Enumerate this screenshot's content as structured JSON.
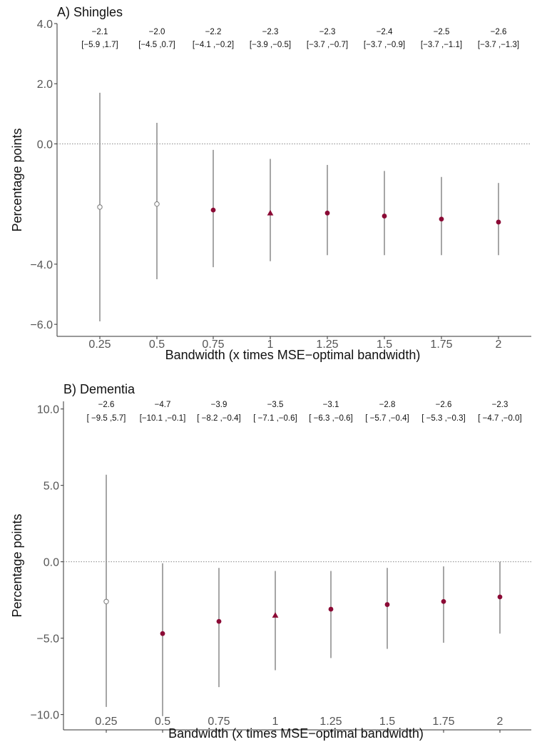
{
  "chart_data": [
    {
      "type": "scatter",
      "title": "A) Shingles",
      "xlabel": "Bandwidth (x times MSE−optimal bandwidth)",
      "ylabel": "Percentage points",
      "ylim": [
        -6.4,
        4.0
      ],
      "y_ticks": [
        "4.0",
        "2.0",
        "0.0",
        "−4.0",
        "−6.0"
      ],
      "y_tick_values": [
        4.0,
        2.0,
        0.0,
        -4.0,
        -6.0
      ],
      "categories": [
        "0.25",
        "0.5",
        "0.75",
        "1",
        "1.25",
        "1.5",
        "1.75",
        "2"
      ],
      "reference_line": 0,
      "grid": false,
      "points": [
        {
          "x": "0.25",
          "estimate": -2.1,
          "lower": -5.9,
          "upper": 1.7,
          "marker": "open-circle",
          "est_label": "−2.1",
          "ci_label": "[−5.9 ,1.7]"
        },
        {
          "x": "0.5",
          "estimate": -2.0,
          "lower": -4.5,
          "upper": 0.7,
          "marker": "open-circle",
          "est_label": "−2.0",
          "ci_label": "[−4.5 ,0.7]"
        },
        {
          "x": "0.75",
          "estimate": -2.2,
          "lower": -4.1,
          "upper": -0.2,
          "marker": "filled-circle",
          "est_label": "−2.2",
          "ci_label": "[−4.1 ,−0.2]"
        },
        {
          "x": "1",
          "estimate": -2.3,
          "lower": -3.9,
          "upper": -0.5,
          "marker": "filled-triangle",
          "est_label": "−2.3",
          "ci_label": "[−3.9 ,−0.5]"
        },
        {
          "x": "1.25",
          "estimate": -2.3,
          "lower": -3.7,
          "upper": -0.7,
          "marker": "filled-circle",
          "est_label": "−2.3",
          "ci_label": "[−3.7 ,−0.7]"
        },
        {
          "x": "1.5",
          "estimate": -2.4,
          "lower": -3.7,
          "upper": -0.9,
          "marker": "filled-circle",
          "est_label": "−2.4",
          "ci_label": "[−3.7 ,−0.9]"
        },
        {
          "x": "1.75",
          "estimate": -2.5,
          "lower": -3.7,
          "upper": -1.1,
          "marker": "filled-circle",
          "est_label": "−2.5",
          "ci_label": "[−3.7 ,−1.1]"
        },
        {
          "x": "2",
          "estimate": -2.6,
          "lower": -3.7,
          "upper": -1.3,
          "marker": "filled-circle",
          "est_label": "−2.6",
          "ci_label": "[−3.7 ,−1.3]"
        }
      ]
    },
    {
      "type": "scatter",
      "title": "B) Dementia",
      "xlabel": "Bandwidth (x times MSE−optimal bandwidth)",
      "ylabel": "Percentage points",
      "ylim": [
        -11.0,
        10.5
      ],
      "y_ticks": [
        "10.0",
        "5.0",
        "0.0",
        "−5.0",
        "−10.0"
      ],
      "y_tick_values": [
        10.0,
        5.0,
        0.0,
        -5.0,
        -10.0
      ],
      "categories": [
        "0.25",
        "0.5",
        "0.75",
        "1",
        "1.25",
        "1.5",
        "1.75",
        "2"
      ],
      "reference_line": 0,
      "grid": false,
      "points": [
        {
          "x": "0.25",
          "estimate": -2.6,
          "lower": -9.5,
          "upper": 5.7,
          "marker": "open-circle",
          "est_label": "−2.6",
          "ci_label": "[ −9.5 ,5.7]"
        },
        {
          "x": "0.5",
          "estimate": -4.7,
          "lower": -10.1,
          "upper": -0.1,
          "marker": "filled-circle",
          "est_label": "−4.7",
          "ci_label": "[−10.1 ,−0.1]"
        },
        {
          "x": "0.75",
          "estimate": -3.9,
          "lower": -8.2,
          "upper": -0.4,
          "marker": "filled-circle",
          "est_label": "−3.9",
          "ci_label": "[ −8.2 ,−0.4]"
        },
        {
          "x": "1",
          "estimate": -3.5,
          "lower": -7.1,
          "upper": -0.6,
          "marker": "filled-triangle",
          "est_label": "−3.5",
          "ci_label": "[ −7.1 ,−0.6]"
        },
        {
          "x": "1.25",
          "estimate": -3.1,
          "lower": -6.3,
          "upper": -0.6,
          "marker": "filled-circle",
          "est_label": "−3.1",
          "ci_label": "[ −6.3 ,−0.6]"
        },
        {
          "x": "1.5",
          "estimate": -2.8,
          "lower": -5.7,
          "upper": -0.4,
          "marker": "filled-circle",
          "est_label": "−2.8",
          "ci_label": "[ −5.7 ,−0.4]"
        },
        {
          "x": "1.75",
          "estimate": -2.6,
          "lower": -5.3,
          "upper": -0.3,
          "marker": "filled-circle",
          "est_label": "−2.6",
          "ci_label": "[ −5.3 ,−0.3]"
        },
        {
          "x": "2",
          "estimate": -2.3,
          "lower": -4.7,
          "upper": -0.0,
          "marker": "filled-circle",
          "est_label": "−2.3",
          "ci_label": "[ −4.7 ,−0.0]"
        }
      ]
    }
  ],
  "colors": {
    "point_fill": "#8b0a35",
    "open_point_stroke": "#777777",
    "ci_line": "#777777",
    "axis": "#333333",
    "reference_line": "#888888"
  }
}
